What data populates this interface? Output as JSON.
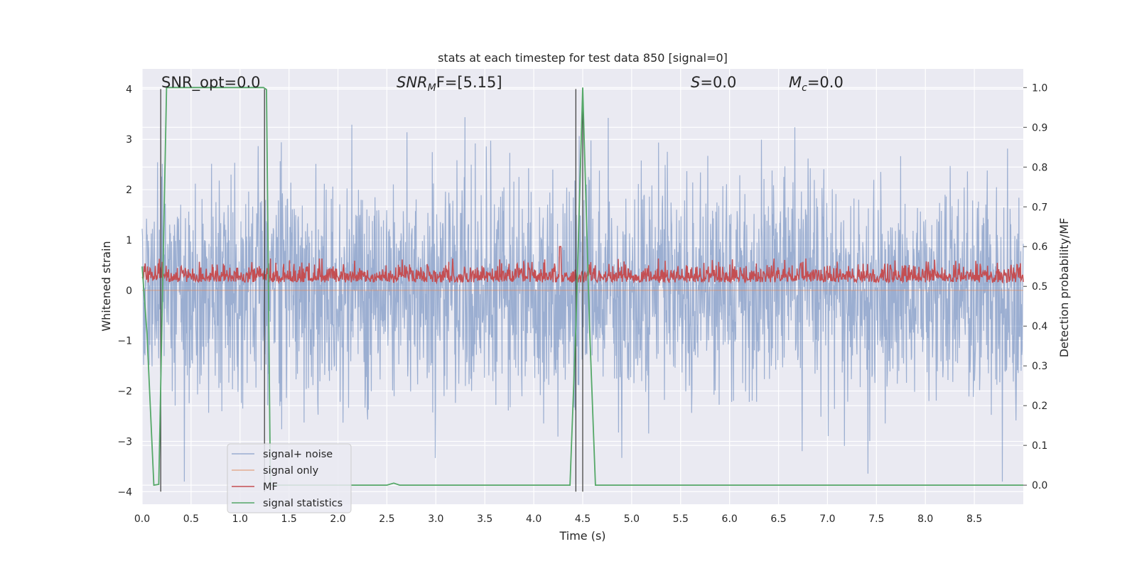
{
  "chart_data": {
    "type": "line",
    "title": "stats at each timestep for test data 850 [signal=0]",
    "xlabel": "Time (s)",
    "ylabel_left": "Whitened strain",
    "ylabel_right": "Detection probability/MF",
    "xlim": [
      0.0,
      9.0
    ],
    "ylim_left": [
      -4.25,
      4.4
    ],
    "ylim_right": [
      -0.048,
      1.047
    ],
    "x_ticks": [
      "0.0",
      "0.5",
      "1.0",
      "1.5",
      "2.0",
      "2.5",
      "3.0",
      "3.5",
      "4.0",
      "4.5",
      "5.0",
      "5.5",
      "6.0",
      "6.5",
      "7.0",
      "7.5",
      "8.0",
      "8.5"
    ],
    "y_ticks_left": [
      "4",
      "3",
      "2",
      "1",
      "0",
      "−1",
      "−2",
      "−3",
      "−4"
    ],
    "y_ticks_right": [
      "1.0",
      "0.9",
      "0.8",
      "0.7",
      "0.6",
      "0.5",
      "0.4",
      "0.3",
      "0.2",
      "0.1",
      "0.0"
    ],
    "grid": true,
    "annotations": {
      "snr_opt": "SNR_opt=0.0",
      "snr_mf_base": "SNR",
      "snr_mf_sub": "M",
      "snr_mf_tail": "F=[5.15]",
      "s_main": "S",
      "s_tail": "=0.0",
      "mc_main": "M",
      "mc_sub": "c",
      "mc_tail": "=0.0"
    },
    "legend": {
      "position": "lower-left",
      "entries": [
        "signal+ noise",
        "signal only",
        "MF",
        "signal statistics"
      ]
    },
    "colors": {
      "noise": "#4c72b0",
      "signal_only": "#dd8452",
      "mf": "#c44e52",
      "stat": "#55a868",
      "vlines": "#444444",
      "background": "#eaeaf2"
    },
    "series": [
      {
        "name": "signal+ noise",
        "axis": "left",
        "description_stats": {
          "approx_envelope_min": -3.8,
          "approx_envelope_max": 3.8,
          "std": 1.0
        }
      },
      {
        "name": "signal only",
        "axis": "left",
        "values_constant": 0.0
      },
      {
        "name": "MF",
        "axis": "right",
        "approx_baseline": 0.52,
        "approx_peaks": [
          {
            "x": 4.27,
            "y": 0.6
          }
        ]
      },
      {
        "name": "signal statistics",
        "axis": "right",
        "x": [
          0.0,
          0.05,
          0.12,
          0.17,
          0.25,
          0.35,
          0.5,
          1.0,
          1.24,
          1.27,
          1.31,
          1.4,
          1.9,
          2.5,
          2.57,
          2.63,
          3.0,
          4.37,
          4.43,
          4.5,
          4.57,
          4.63,
          5.0,
          9.0
        ],
        "y": [
          0.55,
          0.38,
          0.0,
          0.002,
          1.0,
          1.0,
          1.0,
          1.0,
          1.0,
          0.995,
          0.0,
          0.0,
          0.0,
          0.0,
          0.005,
          0.0,
          0.0,
          0.0,
          0.4,
          1.0,
          0.4,
          0.0,
          0.0,
          0.0
        ]
      }
    ],
    "vertical_lines_x": [
      0.19,
      1.25,
      4.43,
      4.5
    ]
  }
}
